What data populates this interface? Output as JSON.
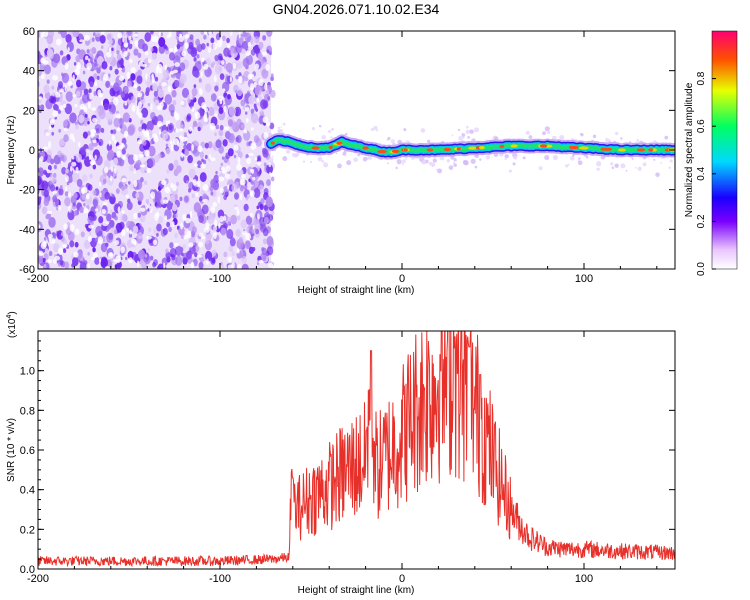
{
  "title": "GN04.2026.071.10.02.E34",
  "chart_data": [
    {
      "type": "heatmap",
      "name": "spectrogram",
      "xlabel": "Height of straight line (km)",
      "ylabel": "Frequency (Hz)",
      "xlim": [
        -200,
        150
      ],
      "ylim": [
        -60,
        60
      ],
      "xticks": [
        -200,
        -100,
        0,
        100
      ],
      "yticks": [
        -60,
        -40,
        -20,
        0,
        20,
        40,
        60
      ],
      "noise_region_x": [
        -200,
        -72
      ],
      "signal_start_x": -72,
      "trace_frequency_points": {
        "x": [
          -72,
          -68,
          -62,
          -55,
          -48,
          -40,
          -33,
          -30,
          -25,
          -20,
          -15,
          -10,
          -5,
          0,
          10,
          20,
          40,
          60,
          80,
          100,
          120,
          150
        ],
        "y": [
          3,
          5,
          4,
          2,
          1,
          1,
          4,
          3,
          2,
          1,
          0,
          -1,
          -1,
          0,
          0,
          0,
          1,
          2,
          2,
          1,
          0,
          0
        ]
      },
      "colorbar": {
        "label": "Normalized spectral amplitude",
        "range": [
          0.0,
          1.0
        ],
        "ticks": [
          "0.0",
          "0.2",
          "0.4",
          "0.6",
          "0.8"
        ],
        "colors": [
          "#ffffff",
          "#e9c7ff",
          "#7a00ff",
          "#1a00ff",
          "#00d8ff",
          "#00ff60",
          "#e8ff00",
          "#ff5000",
          "#ff0070"
        ]
      }
    },
    {
      "type": "line",
      "name": "snr",
      "xlabel": "Height of straight line (km)",
      "ylabel": "SNR (10 * v/v)",
      "scale_label": "(x10",
      "scale_exponent": "4",
      "scale_suffix": ")",
      "xlim": [
        -200,
        150
      ],
      "ylim": [
        0,
        1.2
      ],
      "xticks": [
        -200,
        -100,
        0,
        100
      ],
      "yticks": [
        "0.0",
        "0.2",
        "0.4",
        "0.6",
        "0.8",
        "1.0"
      ],
      "color": "#e8302a",
      "envelope": {
        "x": [
          -200,
          -150,
          -100,
          -70,
          -62,
          -61,
          -58,
          -50,
          -40,
          -30,
          -20,
          -17,
          -16,
          -14,
          -10,
          -5,
          0,
          5,
          10,
          15,
          20,
          25,
          28,
          30,
          35,
          40,
          45,
          50,
          55,
          60,
          65,
          70,
          80,
          90,
          100,
          120,
          150
        ],
        "y": [
          0.04,
          0.04,
          0.04,
          0.05,
          0.06,
          0.35,
          0.3,
          0.36,
          0.42,
          0.5,
          0.55,
          0.95,
          0.7,
          0.5,
          0.55,
          0.62,
          0.68,
          0.76,
          0.84,
          0.9,
          0.93,
          0.97,
          1.02,
          0.98,
          0.9,
          0.82,
          0.7,
          0.55,
          0.42,
          0.3,
          0.22,
          0.16,
          0.11,
          0.1,
          0.1,
          0.09,
          0.08
        ]
      },
      "peaks": {
        "x": [
          -60,
          -17,
          21,
          29,
          37,
          43
        ],
        "y": [
          0.46,
          1.1,
          1.08,
          1.17,
          1.12,
          0.98
        ]
      }
    }
  ]
}
